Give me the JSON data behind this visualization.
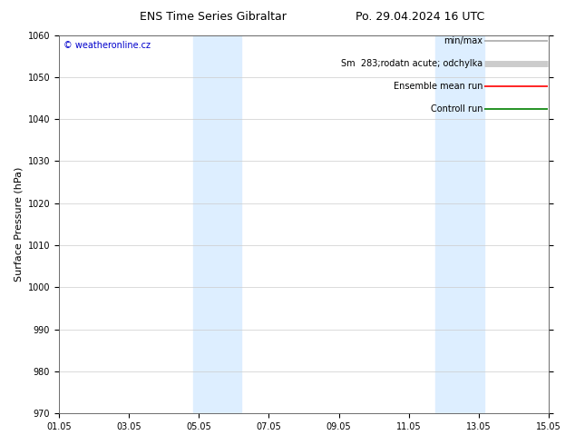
{
  "title_left": "ENS Time Series Gibraltar",
  "title_right": "Po. 29.04.2024 16 UTC",
  "ylabel": "Surface Pressure (hPa)",
  "ylim": [
    970,
    1060
  ],
  "yticks": [
    970,
    980,
    990,
    1000,
    1010,
    1020,
    1030,
    1040,
    1050,
    1060
  ],
  "xlim": [
    0,
    14
  ],
  "xtick_labels": [
    "01.05",
    "03.05",
    "05.05",
    "07.05",
    "09.05",
    "11.05",
    "13.05",
    "15.05"
  ],
  "xtick_positions": [
    0,
    2,
    4,
    6,
    8,
    10,
    12,
    14
  ],
  "blue_bands": [
    {
      "xstart": 3.85,
      "xend": 5.2
    },
    {
      "xstart": 10.75,
      "xend": 12.15
    }
  ],
  "band_color": "#ddeeff",
  "copyright_text": "© weatheronline.cz",
  "copyright_color": "#0000cc",
  "bg_color": "#ffffff",
  "plot_bg_color": "#ffffff",
  "title_fontsize": 9,
  "tick_fontsize": 7,
  "ylabel_fontsize": 8,
  "legend_fontsize": 7,
  "figsize": [
    6.34,
    4.9
  ],
  "dpi": 100
}
